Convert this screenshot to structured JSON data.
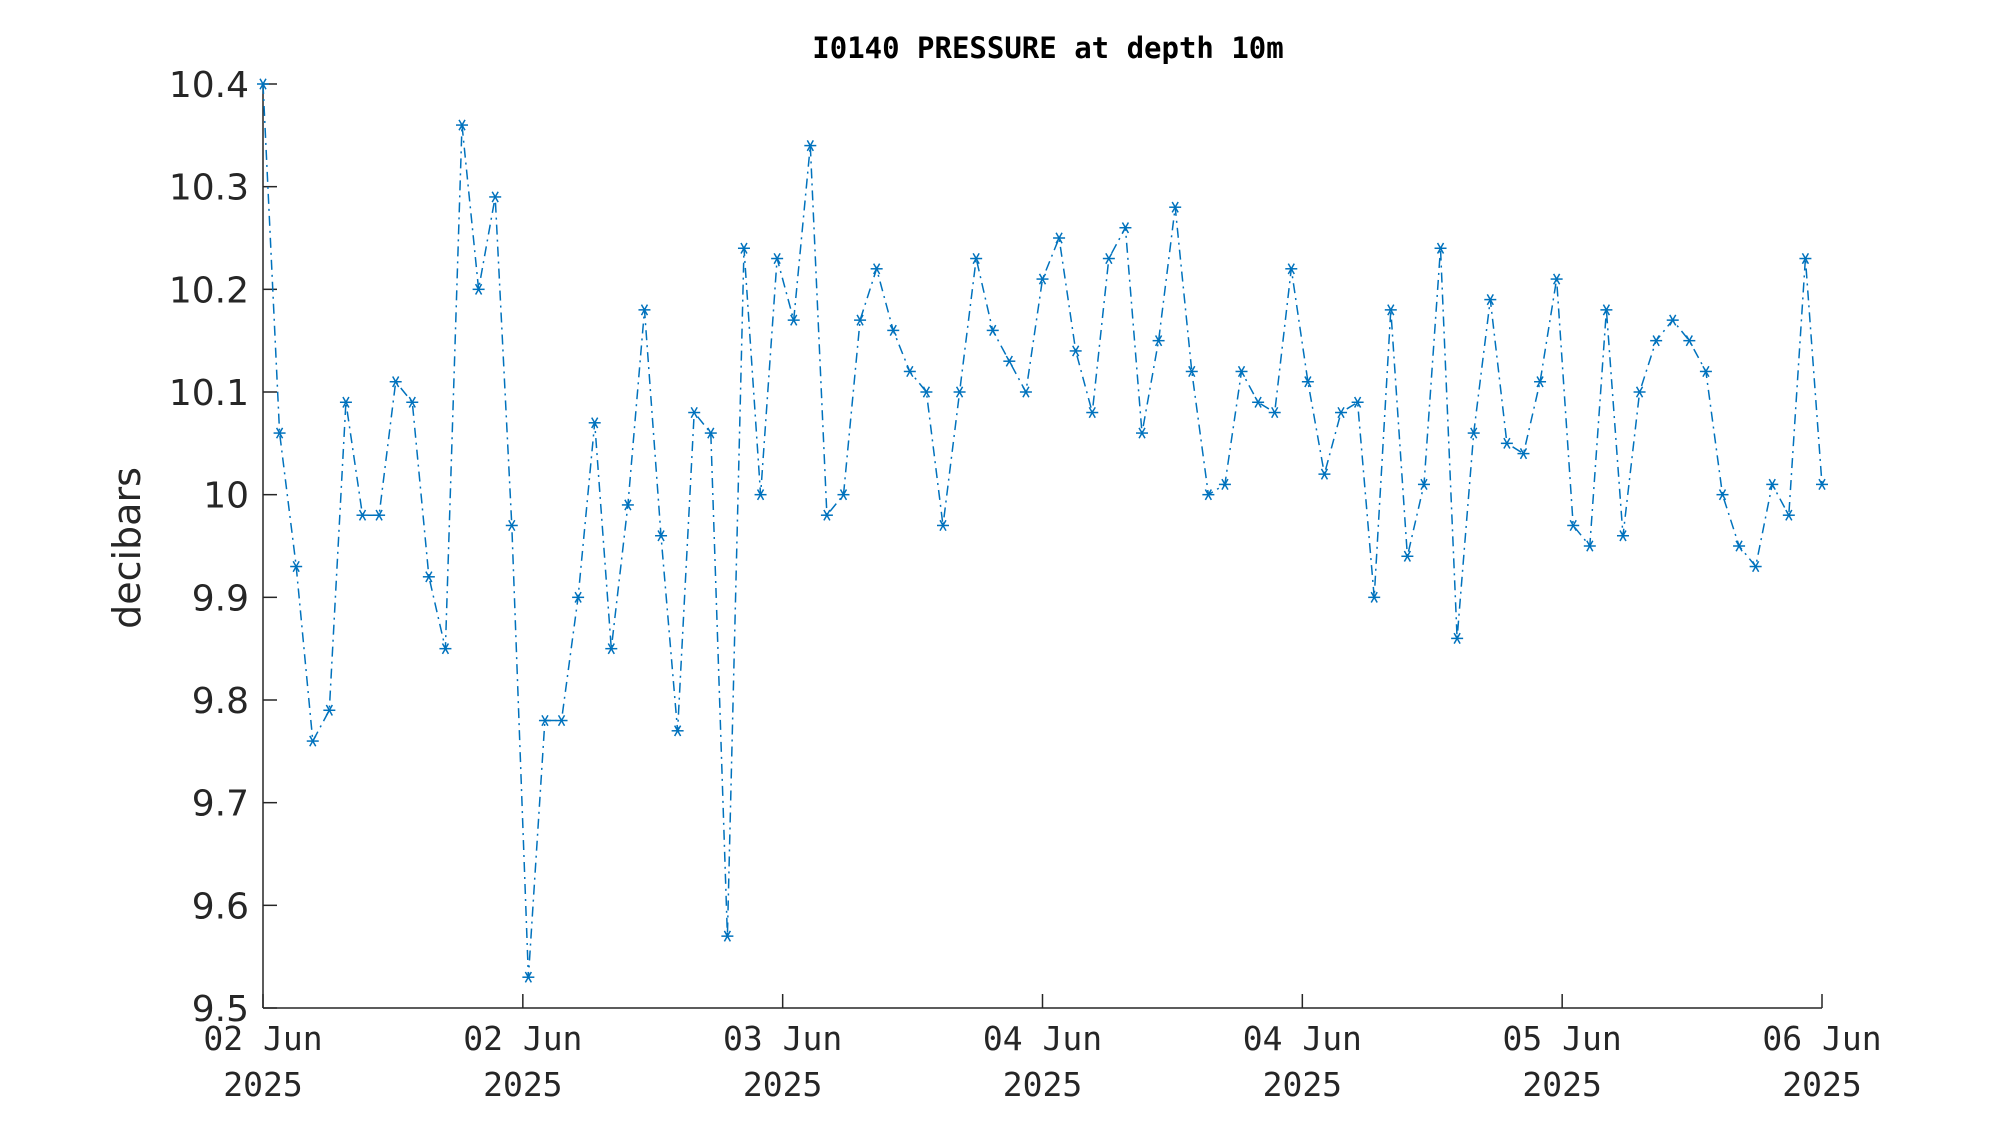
{
  "chart_data": {
    "type": "line",
    "title": "I0140 PRESSURE at depth 10m",
    "xlabel": "",
    "ylabel": "decibars",
    "ylim": [
      9.5,
      10.4
    ],
    "yticks": [
      "9.5",
      "9.6",
      "9.7",
      "9.8",
      "9.9",
      "10",
      "10.1",
      "10.2",
      "10.3",
      "10.4"
    ],
    "xticks": [
      {
        "day": "02 Jun",
        "year": "2025"
      },
      {
        "day": "02 Jun",
        "year": "2025"
      },
      {
        "day": "03 Jun",
        "year": "2025"
      },
      {
        "day": "04 Jun",
        "year": "2025"
      },
      {
        "day": "04 Jun",
        "year": "2025"
      },
      {
        "day": "05 Jun",
        "year": "2025"
      },
      {
        "day": "06 Jun",
        "year": "2025"
      }
    ],
    "grid": false,
    "line_style": "dash-dot",
    "marker": "asterisk",
    "color": "#0072BD",
    "series": [
      {
        "values": [
          10.4,
          10.06,
          9.93,
          9.76,
          9.79,
          10.09,
          9.98,
          9.98,
          10.11,
          10.09,
          9.92,
          9.85,
          10.36,
          10.2,
          10.29,
          9.97,
          9.53,
          9.78,
          9.78,
          9.9,
          10.07,
          9.85,
          9.99,
          10.18,
          9.96,
          9.77,
          10.08,
          10.06,
          9.57,
          10.24,
          10.0,
          10.23,
          10.17,
          10.34,
          9.98,
          10.0,
          10.17,
          10.22,
          10.16,
          10.12,
          10.1,
          9.97,
          10.1,
          10.23,
          10.16,
          10.13,
          10.1,
          10.21,
          10.25,
          10.14,
          10.08,
          10.23,
          10.26,
          10.06,
          10.15,
          10.28,
          10.12,
          10.0,
          10.01,
          10.12,
          10.09,
          10.08,
          10.22,
          10.11,
          10.02,
          10.08,
          10.09,
          9.9,
          10.18,
          9.94,
          10.01,
          10.24,
          9.86,
          10.06,
          10.19,
          10.05,
          10.04,
          10.11,
          10.21,
          9.97,
          9.95,
          10.18,
          9.96,
          10.1,
          10.15,
          10.17,
          10.15,
          10.12,
          10.0,
          9.95,
          9.93,
          10.01,
          9.98,
          10.23,
          10.01
        ]
      }
    ]
  }
}
